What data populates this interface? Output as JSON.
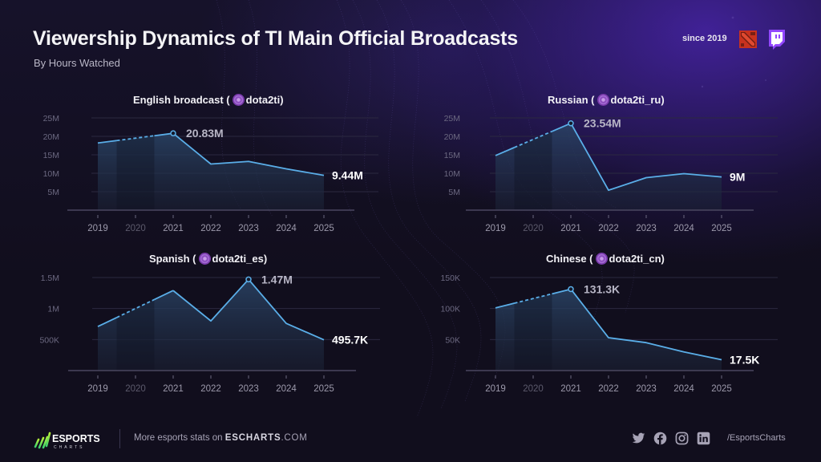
{
  "header": {
    "title": "Viewership Dynamics of TI Main Official Broadcasts",
    "subtitle": "By Hours Watched",
    "since_label": "since 2019",
    "icons": [
      "dota2-icon",
      "twitch-icon"
    ]
  },
  "colors": {
    "line": "#5aaee8",
    "area_top": "#2a4466",
    "grid": "#2b2940",
    "axis": "#4a4760",
    "tick_label": "#9c99ab",
    "tick_label_muted": "#5c5a6c",
    "peak_label": "#b8b6c6",
    "end_label": "#ffffff"
  },
  "chart_data": [
    {
      "type": "area",
      "title_prefix": "English broadcast (",
      "channel": "dota2ti)",
      "categories": [
        "2019",
        "2020",
        "2021",
        "2022",
        "2023",
        "2024",
        "2025"
      ],
      "muted_categories": [
        "2020"
      ],
      "values": [
        18.2,
        null,
        20.83,
        12.5,
        13.2,
        11.2,
        9.44
      ],
      "unit": "M",
      "yticks": [
        "5M",
        "10M",
        "15M",
        "20M",
        "25M"
      ],
      "ytick_values": [
        5,
        10,
        15,
        20,
        25
      ],
      "ylim": [
        0,
        25
      ],
      "peak_index": 2,
      "peak_label": "20.83M",
      "end_label": "9.44M",
      "dashed_segment": [
        "2019",
        "2021"
      ],
      "grid": true
    },
    {
      "type": "area",
      "title_prefix": "Russian (",
      "channel": "dota2ti_ru)",
      "categories": [
        "2019",
        "2020",
        "2021",
        "2022",
        "2023",
        "2024",
        "2025"
      ],
      "muted_categories": [
        "2020"
      ],
      "values": [
        14.8,
        null,
        23.54,
        5.4,
        8.8,
        9.9,
        9.0
      ],
      "unit": "M",
      "yticks": [
        "5M",
        "10M",
        "15M",
        "20M",
        "25M"
      ],
      "ytick_values": [
        5,
        10,
        15,
        20,
        25
      ],
      "ylim": [
        0,
        25
      ],
      "peak_index": 2,
      "peak_label": "23.54M",
      "end_label": "9M",
      "dashed_segment": [
        "2019",
        "2021"
      ],
      "grid": true
    },
    {
      "type": "area",
      "title_prefix": "Spanish (",
      "channel": "dota2ti_es)",
      "categories": [
        "2019",
        "2020",
        "2021",
        "2022",
        "2023",
        "2024",
        "2025"
      ],
      "muted_categories": [
        "2020"
      ],
      "values": [
        0.71,
        null,
        1.29,
        0.8,
        1.47,
        0.76,
        0.4957
      ],
      "unit": "M",
      "yticks": [
        "500K",
        "1M",
        "1.5M"
      ],
      "ytick_values": [
        0.5,
        1.0,
        1.5
      ],
      "ylim": [
        0,
        1.5
      ],
      "peak_index": 4,
      "peak_label": "1.47M",
      "end_label": "495.7K",
      "dashed_segment": [
        "2019",
        "2021"
      ],
      "grid": true
    },
    {
      "type": "area",
      "title_prefix": "Chinese (",
      "channel": "dota2ti_cn)",
      "categories": [
        "2019",
        "2020",
        "2021",
        "2022",
        "2023",
        "2024",
        "2025"
      ],
      "muted_categories": [
        "2020"
      ],
      "values": [
        101,
        null,
        131.3,
        53,
        45,
        30,
        17.5
      ],
      "unit": "K",
      "yticks": [
        "50K",
        "100K",
        "150K"
      ],
      "ytick_values": [
        50,
        100,
        150
      ],
      "ylim": [
        0,
        150
      ],
      "peak_index": 2,
      "peak_label": "131.3K",
      "end_label": "17.5K",
      "dashed_segment": [
        "2019",
        "2021"
      ],
      "grid": true
    }
  ],
  "footer": {
    "brand_main": "ESPORTS",
    "brand_sub": "CHARTS",
    "more_text": "More esports stats on ",
    "site_bold": "ESCHARTS",
    "site_rest": ".COM",
    "socials": [
      "twitter-icon",
      "facebook-icon",
      "instagram-icon",
      "linkedin-icon"
    ],
    "handle": "/EsportsCharts"
  }
}
